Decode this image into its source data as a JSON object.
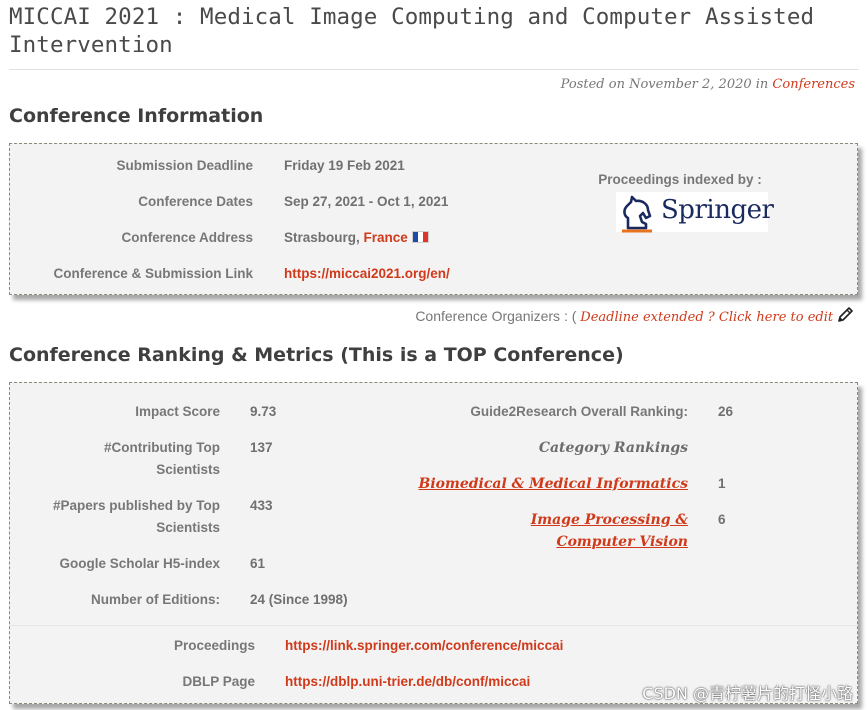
{
  "page": {
    "title": "MICCAI 2021 : Medical Image Computing and Computer Assisted Intervention",
    "posted_prefix": "Posted on November 2, 2020 in ",
    "posted_category": "Conferences"
  },
  "info": {
    "heading": "Conference Information",
    "rows": [
      {
        "label": "Submission Deadline",
        "value": "Friday 19 Feb 2021"
      },
      {
        "label": "Conference Dates",
        "value": "Sep 27, 2021 - Oct 1, 2021"
      },
      {
        "label": "Conference Address",
        "value": "Strasbourg, ",
        "country": "France"
      },
      {
        "label": "Conference & Submission Link",
        "value": "https://miccai2021.org/en/"
      }
    ],
    "proceedings_label": "Proceedings indexed by :",
    "publisher": "Springer"
  },
  "organizers": {
    "prefix": "Conference Organizers : ( ",
    "link": "Deadline extended ? Click here to edit"
  },
  "ranking": {
    "heading": "Conference Ranking & Metrics (This is a TOP Conference)",
    "metrics": [
      {
        "label": "Impact Score",
        "value": "9.73"
      },
      {
        "label": "#Contributing Top Scientists",
        "value": "137"
      },
      {
        "label": "#Papers published by Top Scientists",
        "value": "433"
      },
      {
        "label": "Google Scholar H5-index",
        "value": "61"
      },
      {
        "label": "Number of Editions:",
        "value": "24 (Since 1998)"
      }
    ],
    "overall_label": "Guide2Research Overall Ranking:",
    "overall_value": "26",
    "category_heading": "Category Rankings",
    "categories": [
      {
        "name": "Biomedical & Medical Informatics",
        "rank": "1"
      },
      {
        "name": "Image Processing & Computer Vision",
        "rank": "6"
      }
    ],
    "links": [
      {
        "label": "Proceedings",
        "url": "https://link.springer.com/conference/miccai"
      },
      {
        "label": "DBLP Page",
        "url": "https://dblp.uni-trier.de/db/conf/miccai"
      }
    ]
  },
  "watermark": "CSDN @青柠薯片的打怪小路",
  "colors": {
    "accent": "#d03a1b",
    "box_bg": "#f3f3f3",
    "springer_navy": "#1a2a5e"
  }
}
